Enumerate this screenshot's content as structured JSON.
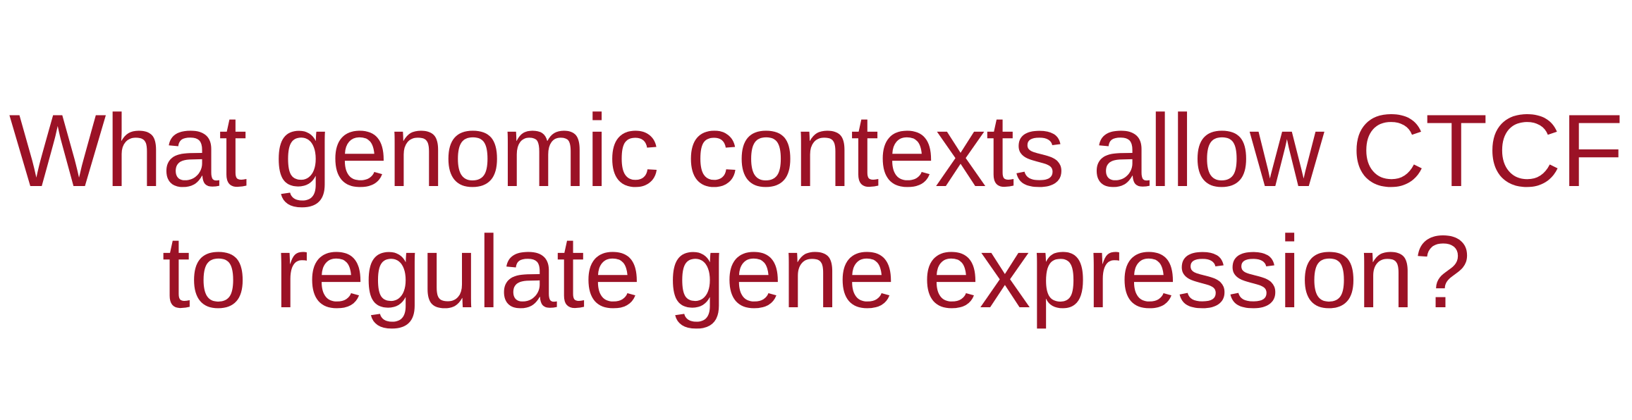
{
  "question": {
    "line1": "What genomic contexts allow CTCF",
    "line2": "to regulate gene expression?"
  },
  "colors": {
    "text": "#9b1226",
    "background": "#ffffff"
  }
}
